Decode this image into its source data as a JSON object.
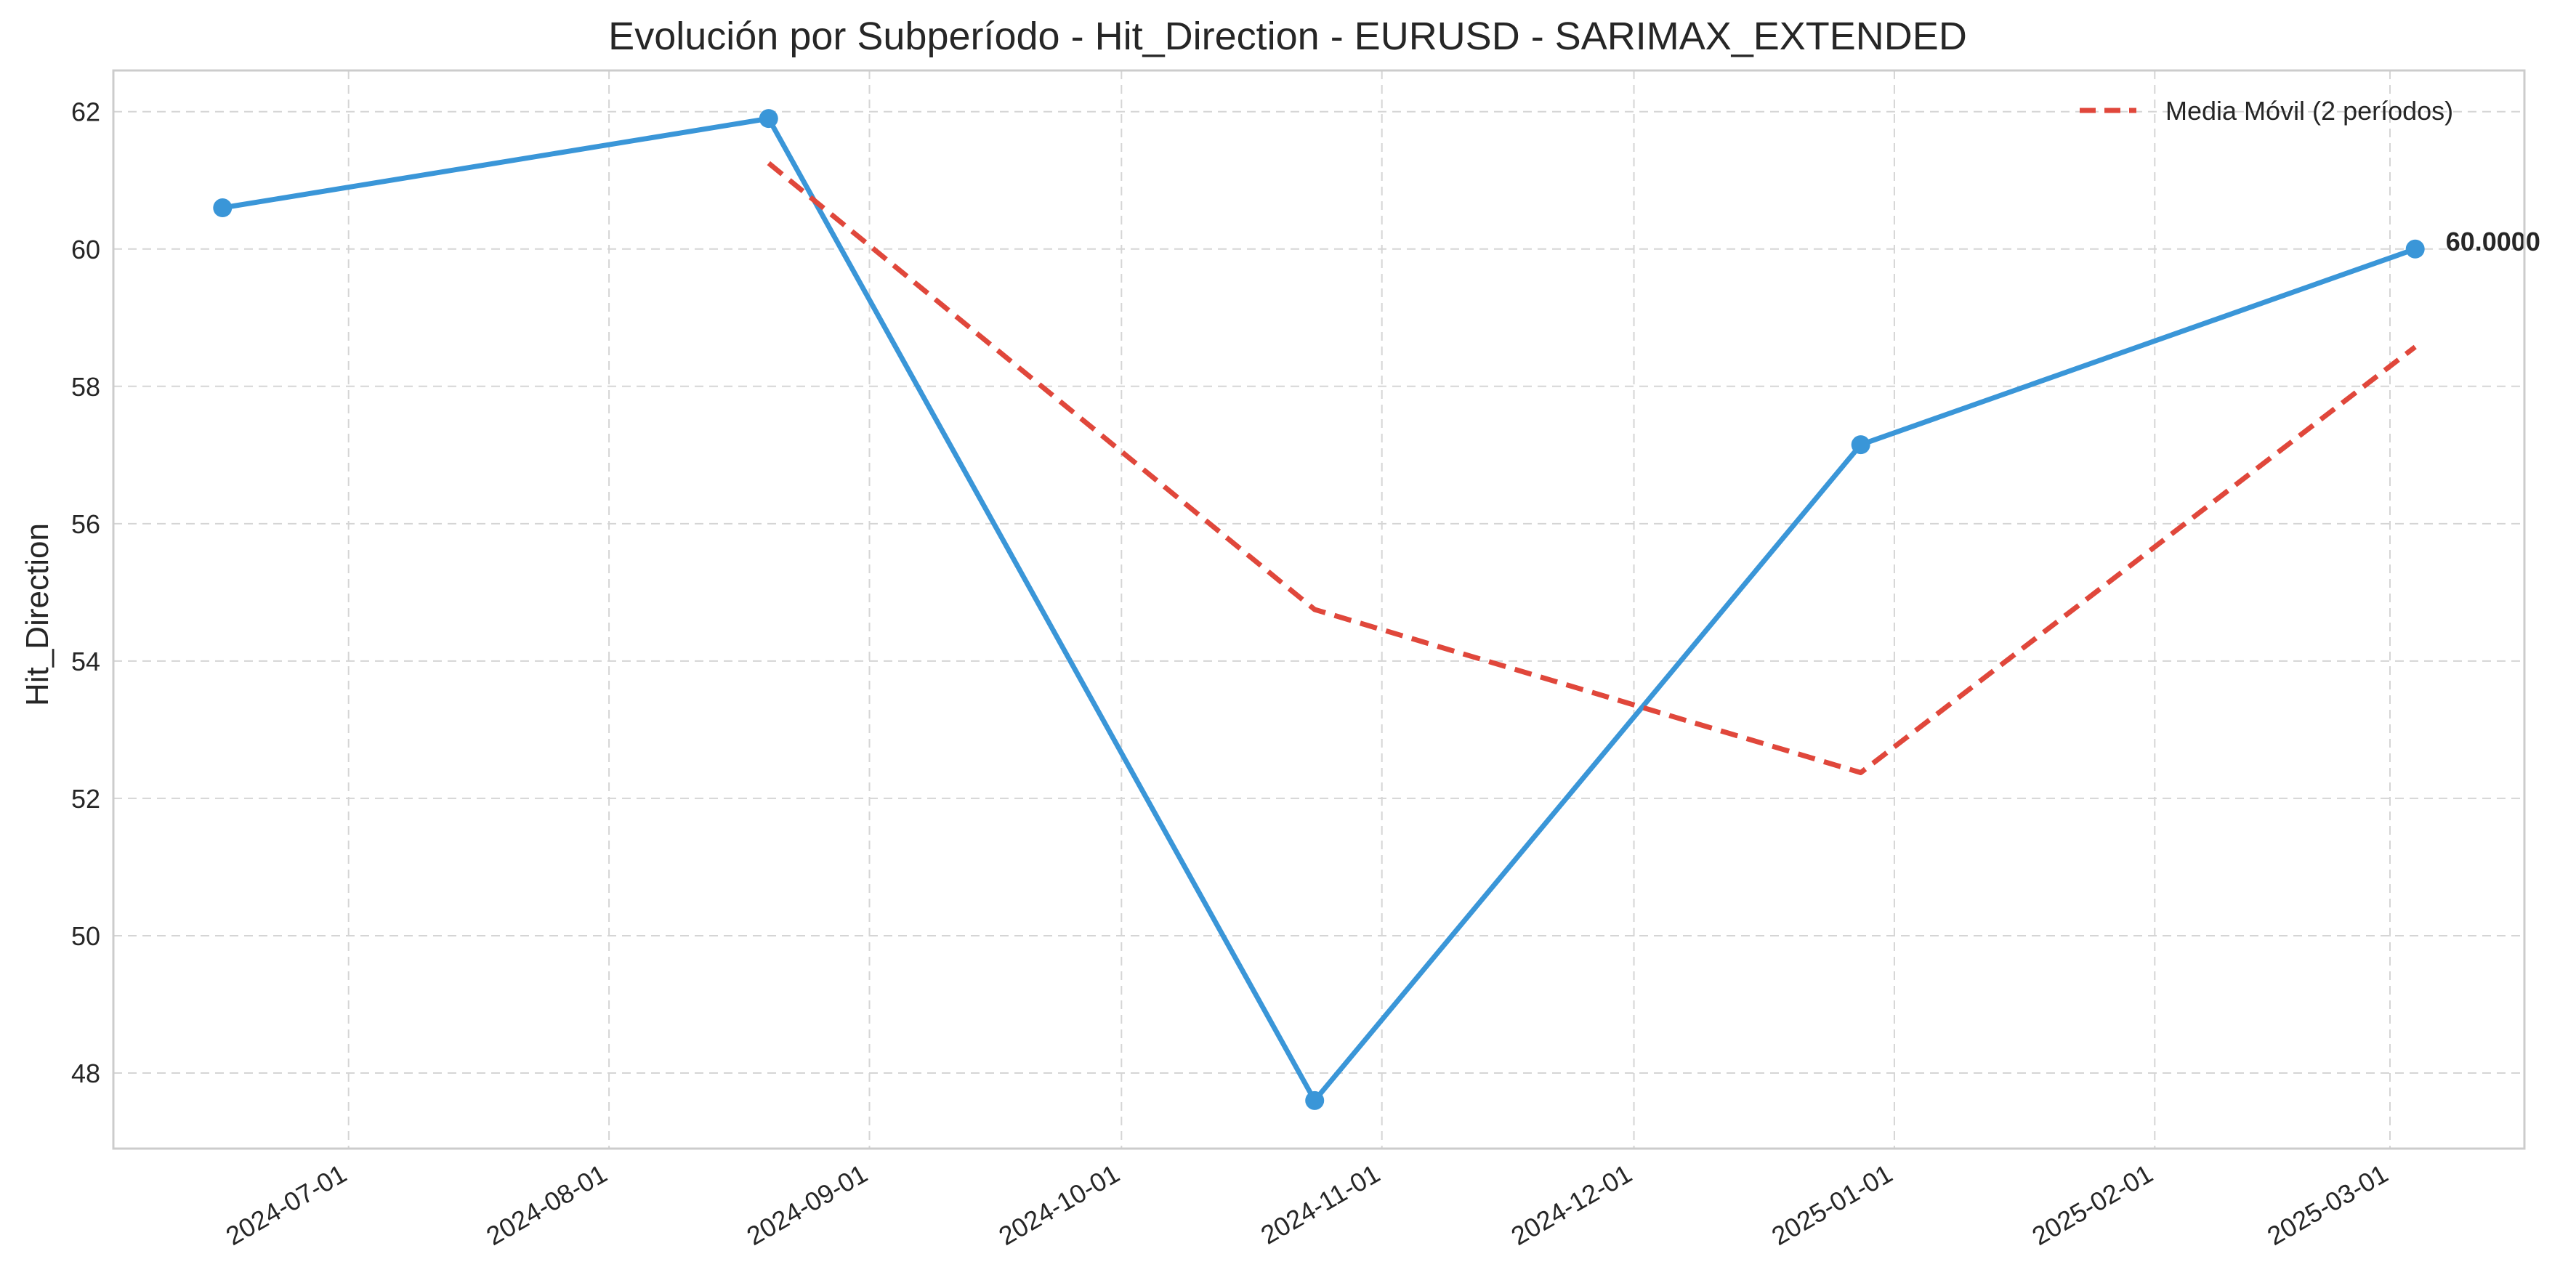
{
  "chart_data": {
    "type": "line",
    "title": "Evolución por Subperíodo - Hit_Direction - EURUSD - SARIMAX_EXTENDED",
    "xlabel": "",
    "ylabel": "Hit_Direction",
    "xlim": [
      "2024-06-03",
      "2025-03-17"
    ],
    "ylim": [
      46.9,
      62.6
    ],
    "x_ticks": [
      "2024-07-01",
      "2024-08-01",
      "2024-09-01",
      "2024-10-01",
      "2024-11-01",
      "2024-12-01",
      "2025-01-01",
      "2025-02-01",
      "2025-03-01"
    ],
    "y_ticks": [
      48,
      50,
      52,
      54,
      56,
      58,
      60,
      62
    ],
    "grid": true,
    "legend_position": "top-right",
    "series": [
      {
        "style": "solid-marker",
        "color": "#3a96d8",
        "x": [
          "2024-06-16",
          "2024-08-20",
          "2024-10-24",
          "2024-12-28",
          "2025-03-04"
        ],
        "values": [
          60.6,
          61.9,
          47.6,
          57.15,
          60.0
        ]
      },
      {
        "name": "Media Móvil (2 períodos)",
        "style": "dashed",
        "color": "#e0473b",
        "x": [
          "2024-08-20",
          "2024-10-24",
          "2024-12-28",
          "2025-03-04"
        ],
        "values": [
          61.25,
          54.75,
          52.375,
          58.575
        ]
      }
    ],
    "annotations": [
      {
        "text": "60.0000",
        "x": "2025-03-04",
        "y": 60.0
      }
    ]
  }
}
